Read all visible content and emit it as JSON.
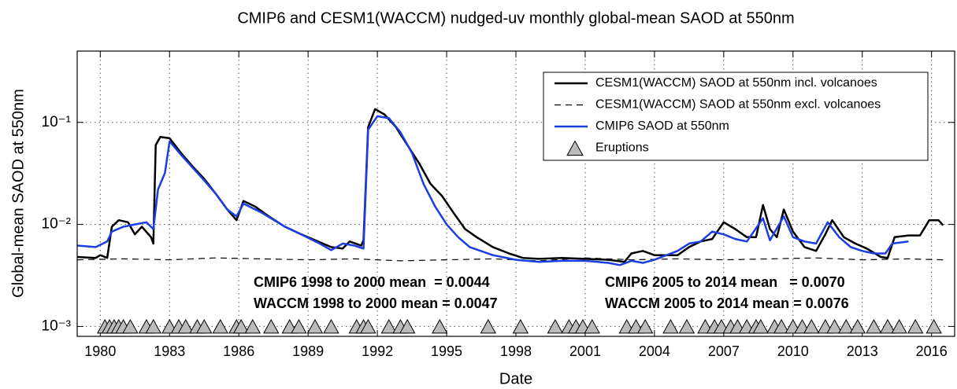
{
  "chart_data": {
    "type": "line",
    "title": "CMIP6 and CESM1(WACCM) nudged-uv monthly global-mean SAOD at 550nm",
    "x_label": "Date",
    "y_label": "Global-mean SAOD at 550nm",
    "xlim": [
      1979,
      2017
    ],
    "xticks": [
      1980,
      1983,
      1986,
      1989,
      1992,
      1995,
      1998,
      2001,
      2004,
      2007,
      2010,
      2013,
      2016
    ],
    "ylim": [
      0.0008,
      0.5
    ],
    "yticks": [
      {
        "value": 0.001,
        "label": "10⁻³"
      },
      {
        "value": 0.01,
        "label": "10⁻²"
      },
      {
        "value": 0.1,
        "label": "10⁻¹"
      }
    ],
    "log_y": true,
    "grid": true,
    "legend": "upper right",
    "series": [
      {
        "name": "CESM1(WACCM) SAOD at 550nm incl. volcanoes",
        "color": "#000000",
        "dash": false,
        "x": [
          1979,
          1979.8,
          1980.0,
          1980.3,
          1980.5,
          1980.8,
          1981.2,
          1981.5,
          1981.8,
          1982.2,
          1982.3,
          1982.4,
          1982.6,
          1983.0,
          1983.5,
          1984.0,
          1984.5,
          1985.0,
          1985.5,
          1985.9,
          1986.2,
          1986.7,
          1987.3,
          1988.0,
          1988.7,
          1989.3,
          1990.0,
          1990.5,
          1990.8,
          1991.3,
          1991.4,
          1991.6,
          1991.9,
          1992.3,
          1992.8,
          1993.3,
          1993.8,
          1994.3,
          1994.8,
          1995.3,
          1995.8,
          1996.3,
          1997.0,
          1997.7,
          1998.3,
          1999.0,
          2000.0,
          2001.0,
          2002.0,
          2002.7,
          2003.0,
          2003.5,
          2004.0,
          2005.0,
          2005.5,
          2006.0,
          2006.5,
          2007.0,
          2007.5,
          2008.0,
          2008.4,
          2008.7,
          2009.0,
          2009.3,
          2009.6,
          2010.0,
          2010.5,
          2011.0,
          2011.4,
          2011.7,
          2012.2,
          2012.7,
          2013.2,
          2013.8,
          2014.1,
          2014.4,
          2015.0,
          2015.5,
          2015.9,
          2016.3,
          2016.5
        ],
        "values": [
          0.0048,
          0.0047,
          0.005,
          0.0047,
          0.0095,
          0.011,
          0.0105,
          0.008,
          0.0095,
          0.0075,
          0.0065,
          0.06,
          0.072,
          0.07,
          0.05,
          0.037,
          0.028,
          0.02,
          0.014,
          0.011,
          0.017,
          0.015,
          0.012,
          0.0095,
          0.008,
          0.007,
          0.006,
          0.0058,
          0.0068,
          0.0062,
          0.007,
          0.09,
          0.135,
          0.12,
          0.09,
          0.06,
          0.04,
          0.025,
          0.019,
          0.013,
          0.009,
          0.0075,
          0.006,
          0.0052,
          0.0047,
          0.0046,
          0.0047,
          0.0046,
          0.0045,
          0.0043,
          0.0052,
          0.0055,
          0.005,
          0.005,
          0.006,
          0.0068,
          0.0072,
          0.0105,
          0.009,
          0.0075,
          0.0075,
          0.0155,
          0.009,
          0.0075,
          0.014,
          0.0085,
          0.006,
          0.0055,
          0.008,
          0.011,
          0.0075,
          0.0065,
          0.0058,
          0.0048,
          0.0047,
          0.0075,
          0.0078,
          0.0078,
          0.011,
          0.011,
          0.0098
        ]
      },
      {
        "name": "CESM1(WACCM) SAOD at 550nm excl. volcanoes",
        "color": "#000000",
        "dash": true,
        "x": [
          1979,
          1981,
          1983,
          1985,
          1987,
          1989,
          1991,
          1993,
          1995,
          1997,
          1999,
          2001,
          2003,
          2005,
          2007,
          2009,
          2011,
          2013,
          2015,
          2016.5
        ],
        "values": [
          0.0045,
          0.0046,
          0.0045,
          0.0047,
          0.0046,
          0.0045,
          0.0046,
          0.0044,
          0.0045,
          0.0046,
          0.0044,
          0.0047,
          0.0045,
          0.0046,
          0.0045,
          0.0046,
          0.0047,
          0.0045,
          0.0046,
          0.0045
        ]
      },
      {
        "name": "CMIP6 SAOD at 550nm",
        "color": "#1a3ee0",
        "dash": false,
        "x": [
          1979,
          1979.8,
          1980.3,
          1980.5,
          1981.0,
          1981.5,
          1982.0,
          1982.3,
          1982.5,
          1982.8,
          1983.0,
          1983.5,
          1984.0,
          1984.5,
          1985.0,
          1985.5,
          1985.9,
          1986.2,
          1987.0,
          1988.0,
          1988.7,
          1989.5,
          1990.0,
          1990.5,
          1991.0,
          1991.4,
          1991.6,
          1992.0,
          1992.5,
          1993.0,
          1993.5,
          1994.0,
          1994.5,
          1995.0,
          1995.5,
          1996.0,
          1997.0,
          1998.0,
          1999.0,
          2000.0,
          2001.0,
          2002.0,
          2002.5,
          2003.0,
          2003.5,
          2004.0,
          2005.0,
          2005.5,
          2006.0,
          2006.5,
          2007.0,
          2007.5,
          2008.0,
          2008.7,
          2009.0,
          2009.6,
          2010.0,
          2010.5,
          2011.0,
          2011.5,
          2012.0,
          2012.5,
          2013.0,
          2013.5,
          2014.0,
          2014.3,
          2015.0
        ],
        "values": [
          0.0062,
          0.006,
          0.0068,
          0.0085,
          0.0095,
          0.01,
          0.0105,
          0.009,
          0.022,
          0.032,
          0.065,
          0.048,
          0.036,
          0.027,
          0.02,
          0.014,
          0.012,
          0.016,
          0.013,
          0.0095,
          0.008,
          0.0065,
          0.0056,
          0.0065,
          0.0062,
          0.0058,
          0.085,
          0.115,
          0.11,
          0.08,
          0.05,
          0.025,
          0.015,
          0.01,
          0.0075,
          0.006,
          0.005,
          0.0045,
          0.0043,
          0.0044,
          0.0044,
          0.0042,
          0.004,
          0.0044,
          0.0042,
          0.0045,
          0.0055,
          0.0065,
          0.0068,
          0.0085,
          0.008,
          0.0072,
          0.0068,
          0.0115,
          0.007,
          0.012,
          0.0075,
          0.0068,
          0.0065,
          0.0105,
          0.0075,
          0.006,
          0.0055,
          0.0052,
          0.0052,
          0.0065,
          0.0068
        ]
      },
      {
        "name": "Eruptions",
        "color": "#bbbbbb",
        "marker": "triangle",
        "x": [
          1980.2,
          1980.4,
          1980.6,
          1980.8,
          1981.0,
          1981.3,
          1982.0,
          1982.3,
          1983.0,
          1983.4,
          1983.7,
          1984.2,
          1984.5,
          1985.2,
          1985.9,
          1986.1,
          1986.6,
          1987.4,
          1988.2,
          1988.6,
          1989.3,
          1990.0,
          1991.1,
          1991.4,
          1991.6,
          1992.5,
          1993.0,
          1993.3,
          1994.7,
          1996.8,
          1998.2,
          1999.7,
          2000.3,
          2000.6,
          2000.9,
          2001.3,
          2002.8,
          2003.2,
          2003.6,
          2004.7,
          2005.4,
          2006.2,
          2006.6,
          2006.9,
          2007.3,
          2007.6,
          2008.0,
          2008.4,
          2008.6,
          2009.2,
          2009.5,
          2010.0,
          2010.4,
          2010.8,
          2011.4,
          2011.8,
          2012.3,
          2012.8,
          2013.5,
          2014.1,
          2014.6,
          2015.3,
          2016.1
        ],
        "values": [
          0.001,
          0.001,
          0.001,
          0.001,
          0.001,
          0.001,
          0.001,
          0.001,
          0.001,
          0.001,
          0.001,
          0.001,
          0.001,
          0.001,
          0.001,
          0.001,
          0.001,
          0.001,
          0.001,
          0.001,
          0.001,
          0.001,
          0.001,
          0.001,
          0.001,
          0.001,
          0.001,
          0.001,
          0.001,
          0.001,
          0.001,
          0.001,
          0.001,
          0.001,
          0.001,
          0.001,
          0.001,
          0.001,
          0.001,
          0.001,
          0.001,
          0.001,
          0.001,
          0.001,
          0.001,
          0.001,
          0.001,
          0.001,
          0.001,
          0.001,
          0.001,
          0.001,
          0.001,
          0.001,
          0.001,
          0.001,
          0.001,
          0.001,
          0.001,
          0.001,
          0.001,
          0.001,
          0.001
        ]
      }
    ],
    "annotations": [
      {
        "text": "CMIP6 1998 to 2000 mean  = 0.0044",
        "color": "#1a3ee0"
      },
      {
        "text": "WACCM 1998 to 2000 mean = 0.0047",
        "color": "#000000"
      },
      {
        "text": "CMIP6 2005 to 2014 mean   = 0.0070",
        "color": "#1a3ee0"
      },
      {
        "text": "WACCM 2005 to 2014 mean = 0.0076",
        "color": "#000000"
      }
    ]
  }
}
